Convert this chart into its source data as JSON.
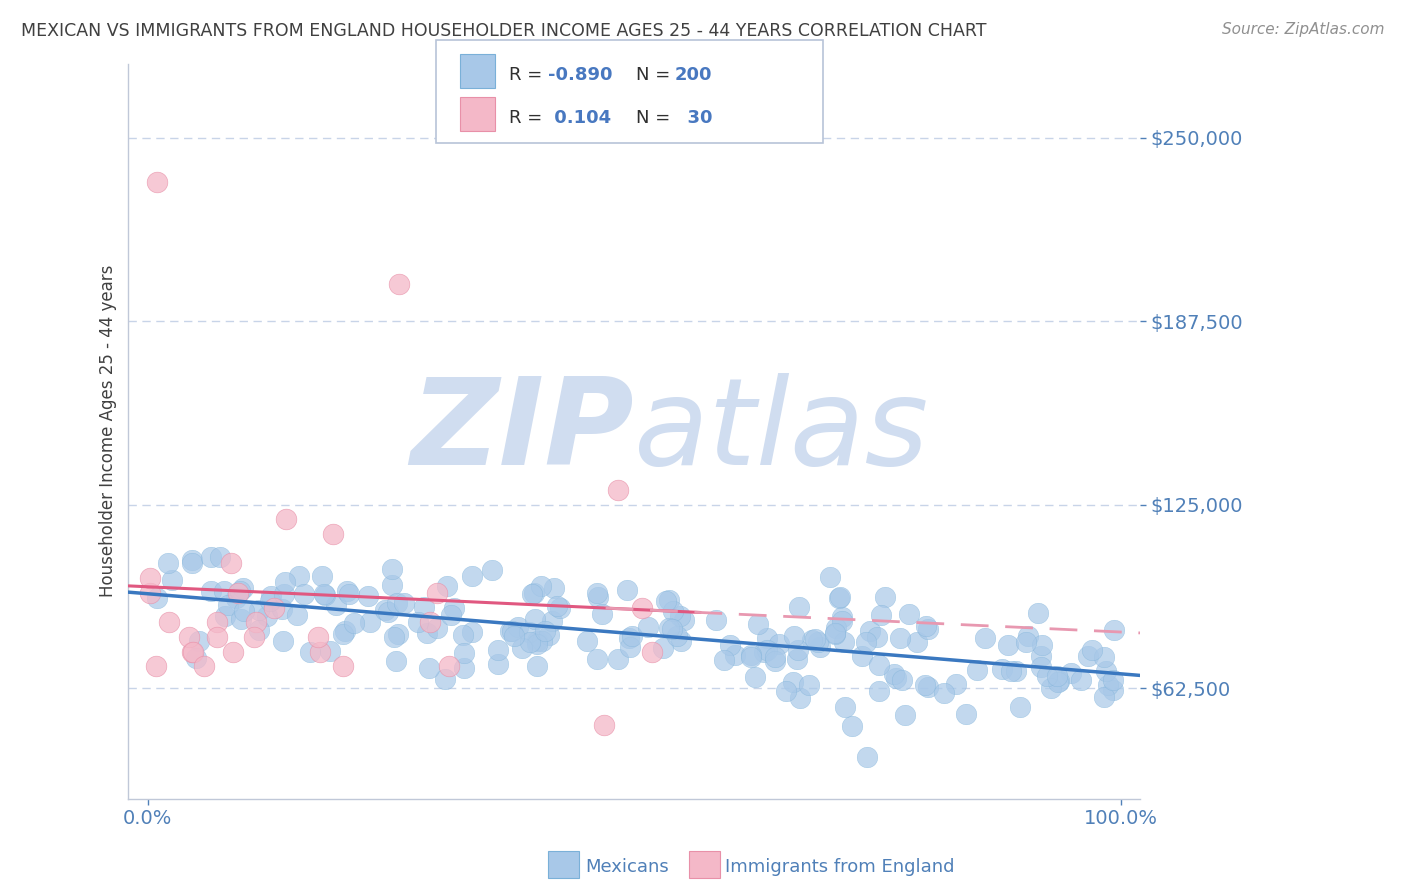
{
  "title": "MEXICAN VS IMMIGRANTS FROM ENGLAND HOUSEHOLDER INCOME AGES 25 - 44 YEARS CORRELATION CHART",
  "source": "Source: ZipAtlas.com",
  "ylabel": "Householder Income Ages 25 - 44 years",
  "yticks_labels": [
    "$62,500",
    "$125,000",
    "$187,500",
    "$250,000"
  ],
  "yticks_values": [
    62500,
    125000,
    187500,
    250000
  ],
  "ymin": 25000,
  "ymax": 275000,
  "xmin": -0.02,
  "xmax": 1.02,
  "xticks_labels": [
    "0.0%",
    "100.0%"
  ],
  "mexicans_color": "#a8c8e8",
  "mexicans_edge_color": "#7ab0d8",
  "england_color": "#f4b8c8",
  "england_edge_color": "#e890a8",
  "mexicans_line_color": "#3a78c0",
  "england_line_color": "#e05880",
  "england_dashed_color": "#e898b0",
  "watermark_zip": "ZIP",
  "watermark_atlas": "atlas",
  "watermark_color": "#d0ddf0",
  "background_color": "#ffffff",
  "grid_color": "#c8d4e8",
  "title_color": "#404040",
  "axis_label_color": "#5080b8",
  "tick_label_color": "#404040",
  "legend_r_color": "#404040",
  "legend_val_color": "#4878c0",
  "mexicans_legend": "Mexicans",
  "england_legend": "Immigrants from England",
  "mexicans_R": -0.89,
  "mexicans_N": 200,
  "england_R": 0.104,
  "england_N": 30
}
